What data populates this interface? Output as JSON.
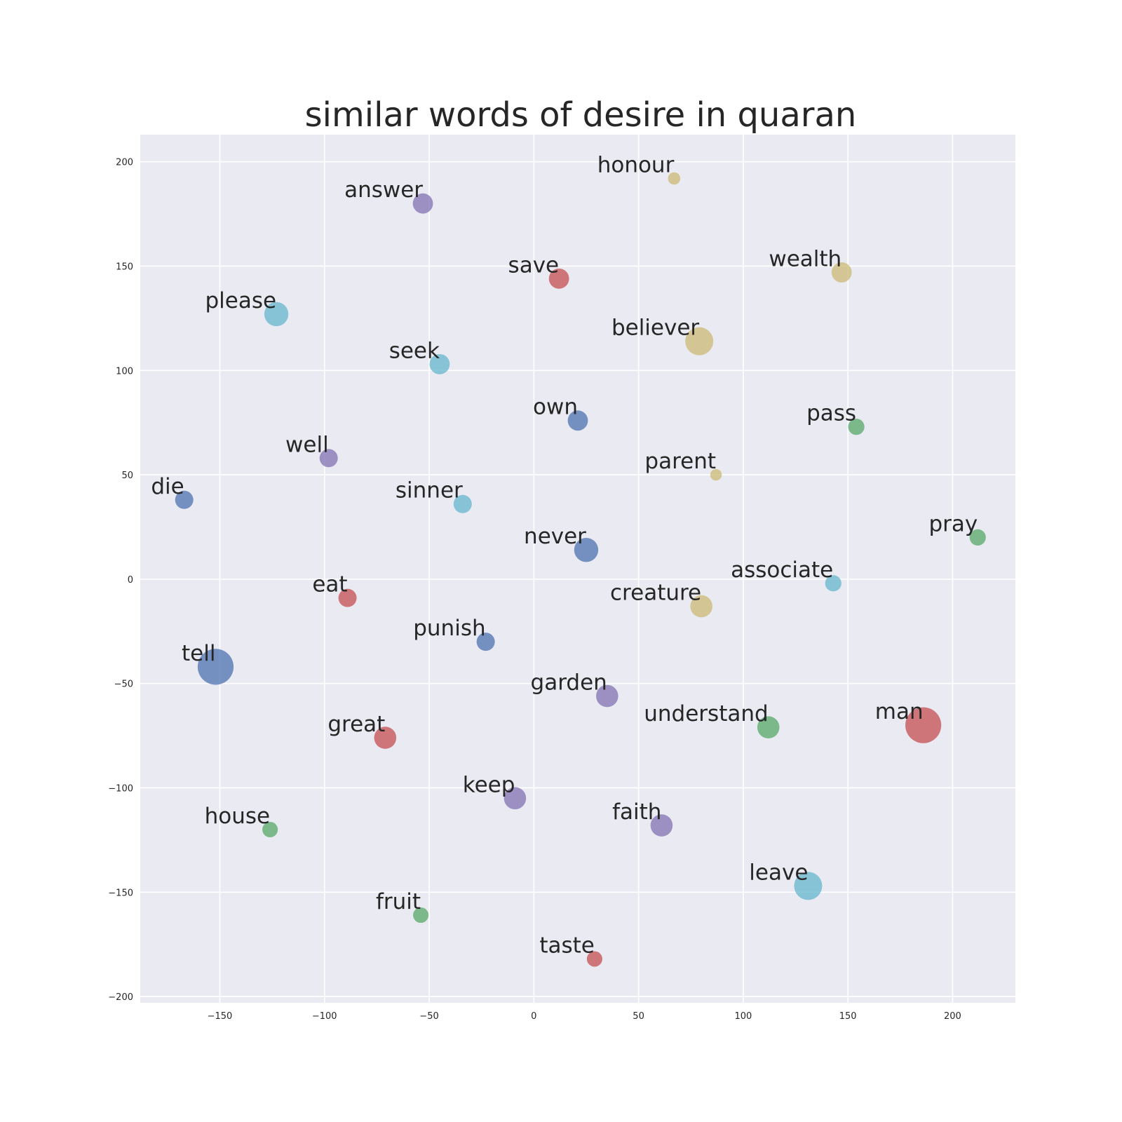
{
  "chart_data": {
    "type": "scatter",
    "title": "similar words of desire in quaran",
    "xlabel": "",
    "ylabel": "",
    "xlim": [
      -188,
      230
    ],
    "ylim": [
      -203,
      213
    ],
    "xticks": [
      -150,
      -100,
      -50,
      0,
      50,
      100,
      150,
      200
    ],
    "yticks": [
      -200,
      -150,
      -100,
      -50,
      0,
      50,
      100,
      150,
      200
    ],
    "grid": true,
    "colors": {
      "background": "#eaeaf2",
      "grid": "#ffffff",
      "blue": "#4c72b0",
      "green": "#55a868",
      "red": "#c44e52",
      "purple": "#8172b2",
      "yellow": "#ccb974",
      "cyan": "#64b5cd"
    },
    "points": [
      {
        "label": "honour",
        "x": 67,
        "y": 192,
        "color": "yellow",
        "size": 1
      },
      {
        "label": "answer",
        "x": -53,
        "y": 180,
        "color": "purple",
        "size": 3
      },
      {
        "label": "save",
        "x": 12,
        "y": 144,
        "color": "red",
        "size": 3
      },
      {
        "label": "wealth",
        "x": 147,
        "y": 147,
        "color": "yellow",
        "size": 3
      },
      {
        "label": "please",
        "x": -123,
        "y": 127,
        "color": "cyan",
        "size": 4
      },
      {
        "label": "believer",
        "x": 79,
        "y": 114,
        "color": "yellow",
        "size": 5
      },
      {
        "label": "seek",
        "x": -45,
        "y": 103,
        "color": "cyan",
        "size": 3
      },
      {
        "label": "own",
        "x": 21,
        "y": 76,
        "color": "blue",
        "size": 3
      },
      {
        "label": "pass",
        "x": 154,
        "y": 73,
        "color": "green",
        "size": 2
      },
      {
        "label": "well",
        "x": -98,
        "y": 58,
        "color": "purple",
        "size": 2.5
      },
      {
        "label": "parent",
        "x": 87,
        "y": 50,
        "color": "yellow",
        "size": 0.8
      },
      {
        "label": "die",
        "x": -167,
        "y": 38,
        "color": "blue",
        "size": 2.5
      },
      {
        "label": "sinner",
        "x": -34,
        "y": 36,
        "color": "cyan",
        "size": 2.5
      },
      {
        "label": "pray",
        "x": 212,
        "y": 20,
        "color": "green",
        "size": 2
      },
      {
        "label": "never",
        "x": 25,
        "y": 14,
        "color": "blue",
        "size": 4
      },
      {
        "label": "associate",
        "x": 143,
        "y": -2,
        "color": "cyan",
        "size": 2
      },
      {
        "label": "eat",
        "x": -89,
        "y": -9,
        "color": "red",
        "size": 2.5
      },
      {
        "label": "creature",
        "x": 80,
        "y": -13,
        "color": "yellow",
        "size": 3.5
      },
      {
        "label": "punish",
        "x": -23,
        "y": -30,
        "color": "blue",
        "size": 2.5
      },
      {
        "label": "tell",
        "x": -152,
        "y": -42,
        "color": "blue",
        "size": 7
      },
      {
        "label": "garden",
        "x": 35,
        "y": -56,
        "color": "purple",
        "size": 3.5
      },
      {
        "label": "understand",
        "x": 112,
        "y": -71,
        "color": "green",
        "size": 3.5
      },
      {
        "label": "man",
        "x": 186,
        "y": -70,
        "color": "red",
        "size": 7
      },
      {
        "label": "great",
        "x": -71,
        "y": -76,
        "color": "red",
        "size": 3.5
      },
      {
        "label": "keep",
        "x": -9,
        "y": -105,
        "color": "purple",
        "size": 3.5
      },
      {
        "label": "faith",
        "x": 61,
        "y": -118,
        "color": "purple",
        "size": 3.5
      },
      {
        "label": "house",
        "x": -126,
        "y": -120,
        "color": "green",
        "size": 1.8
      },
      {
        "label": "leave",
        "x": 131,
        "y": -147,
        "color": "cyan",
        "size": 5
      },
      {
        "label": "fruit",
        "x": -54,
        "y": -161,
        "color": "green",
        "size": 1.8
      },
      {
        "label": "taste",
        "x": 29,
        "y": -182,
        "color": "red",
        "size": 1.8
      }
    ]
  }
}
